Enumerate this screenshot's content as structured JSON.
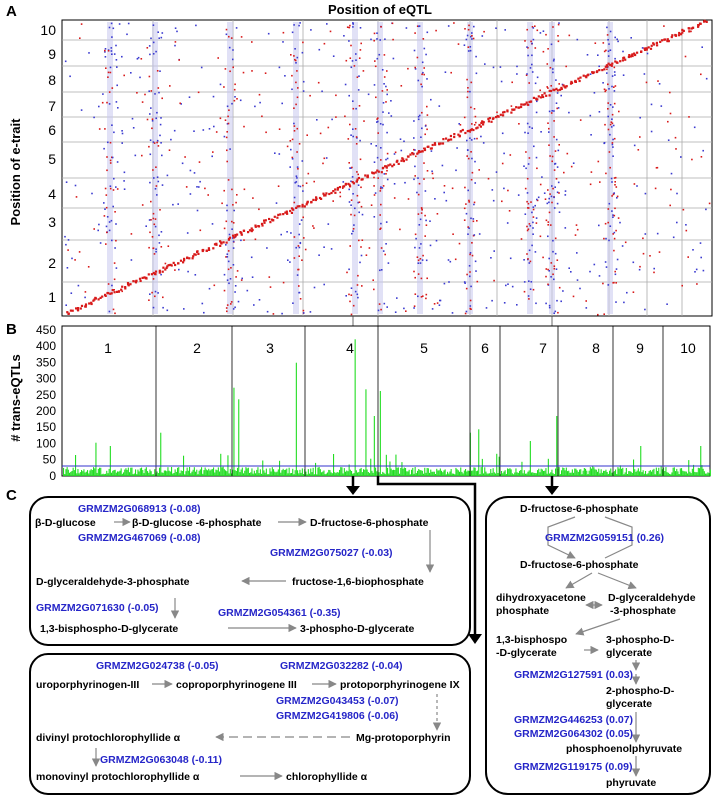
{
  "panel_a": {
    "letter": "A",
    "title": "Position of eQTL",
    "ylabel": "Position of e-trait",
    "y_ticks": [
      "10",
      "9",
      "8",
      "7",
      "6",
      "5",
      "4",
      "3",
      "2",
      "1"
    ]
  },
  "panel_b": {
    "letter": "B",
    "ylabel": "# trans-eQTLs",
    "y_ticks": [
      "450",
      "400",
      "350",
      "300",
      "250",
      "200",
      "150",
      "100",
      "50",
      "0"
    ],
    "chromosomes": [
      "1",
      "2",
      "3",
      "4",
      "5",
      "6",
      "7",
      "8",
      "9",
      "10"
    ]
  },
  "panel_c": {
    "letter": "C",
    "glycolysis": {
      "genes": {
        "g1": "GRMZM2G068913 (-0.08)",
        "g2": "GRMZM2G467069 (-0.08)",
        "g3": "GRMZM2G075027 (-0.03)",
        "g4": "GRMZM2G071630 (-0.05)",
        "g5": "GRMZM2G054361 (-0.35)"
      },
      "metabolites": {
        "m1": "β-D-glucose",
        "m2": "β-D-glucose -6-phosphate",
        "m3": "D-fructose-6-phosphate",
        "m4": "fructose-1,6-biophosphate",
        "m5": "D-glyceraldehyde-3-phosphate",
        "m6": "1,3-bisphospho-D-glycerate",
        "m7": "3-phospho-D-glycerate"
      }
    },
    "chlorophyll": {
      "genes": {
        "g1": "GRMZM2G024738 (-0.05)",
        "g2": "GRMZM2G032282 (-0.04)",
        "g3": "GRMZM2G043453 (-0.07)",
        "g4": "GRMZM2G419806 (-0.06)",
        "g5": "GRMZM2G063048 (-0.11)"
      },
      "metabolites": {
        "m1": "uroporphyrinogen-III",
        "m2": "coproporphyrinogene III",
        "m3": "protoporphyrinogene IX",
        "m4": "divinyl protochlorophyllide α",
        "m5": "Mg-protoporphyrin",
        "m6": "monovinyl protochlorophyllide α",
        "m7": "chlorophyllide α"
      }
    },
    "right_pathway": {
      "genes": {
        "g1": "GRMZM2G059151 (0.26)",
        "g2": "GRMZM2G127591 (0.03)",
        "g3": "GRMZM2G446253 (0.07)",
        "g4": "GRMZM2G064302 (0.05)",
        "g5": "GRMZM2G119175 (0.09)"
      },
      "metabolites": {
        "m1": "D-fructose-6-phosphate",
        "m2": "D-fructose-6-phosphate",
        "m3a": "dihydroxyacetone",
        "m3b": "phosphate",
        "m4a": "D-glyceraldehyde",
        "m4b": "-3-phosphate",
        "m5a": "1,3-bisphospo",
        "m5b": "-D-glycerate",
        "m6a": "3-phospho-D-",
        "m6b": "glycerate",
        "m7a": "2-phospho-D-",
        "m7b": "glycerate",
        "m8": "phosphoenolphyruvate",
        "m9": "phyruvate"
      }
    }
  },
  "colors": {
    "cis_red": "#d81a1a",
    "trans_blue": "#3b3bd0",
    "bars_green": "#22dd22",
    "threshold_blue": "#3333cc",
    "gene_blue": "#2525c8",
    "grid": "#aaaaaa"
  }
}
